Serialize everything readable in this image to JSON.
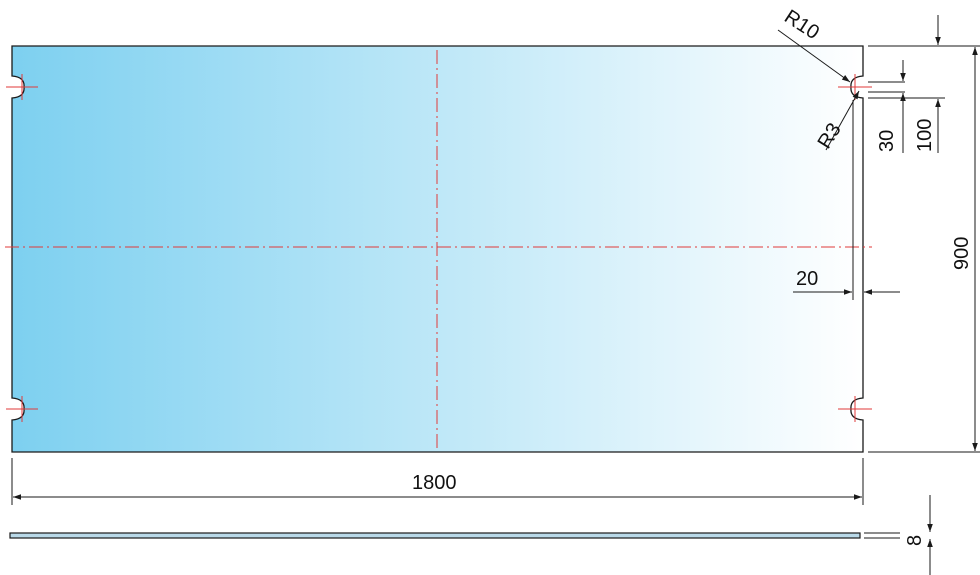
{
  "drawing": {
    "labels": {
      "r10": "R10",
      "r3": "R3",
      "d30": "30",
      "d100": "100",
      "d900": "900",
      "d20": "20",
      "d1800": "1800",
      "d8": "8"
    },
    "colors": {
      "panel_left": "#7dd0f0",
      "panel_right": "#ffffff",
      "outline": "#1a1a1a",
      "centerline": "#e03a3a",
      "dimension": "#1a1a1a",
      "edge_strip": "#b9d9e8"
    }
  }
}
